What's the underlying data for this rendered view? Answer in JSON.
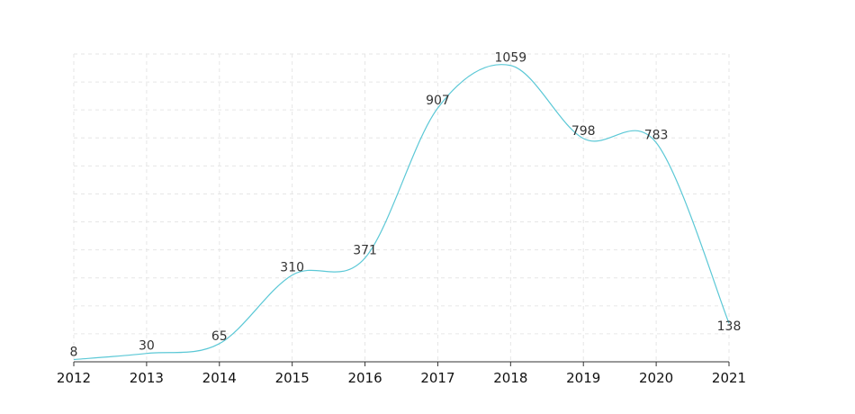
{
  "chart_data": {
    "type": "line",
    "x": [
      "2012",
      "2013",
      "2014",
      "2015",
      "2016",
      "2017",
      "2018",
      "2019",
      "2020",
      "2021"
    ],
    "series": [
      {
        "values": [
          8,
          30,
          65,
          310,
          371,
          907,
          1059,
          798,
          783,
          138
        ]
      }
    ],
    "ylim": [
      0,
      1100
    ],
    "grid": true,
    "smooth": true,
    "line_color": "#5bc8d6"
  }
}
